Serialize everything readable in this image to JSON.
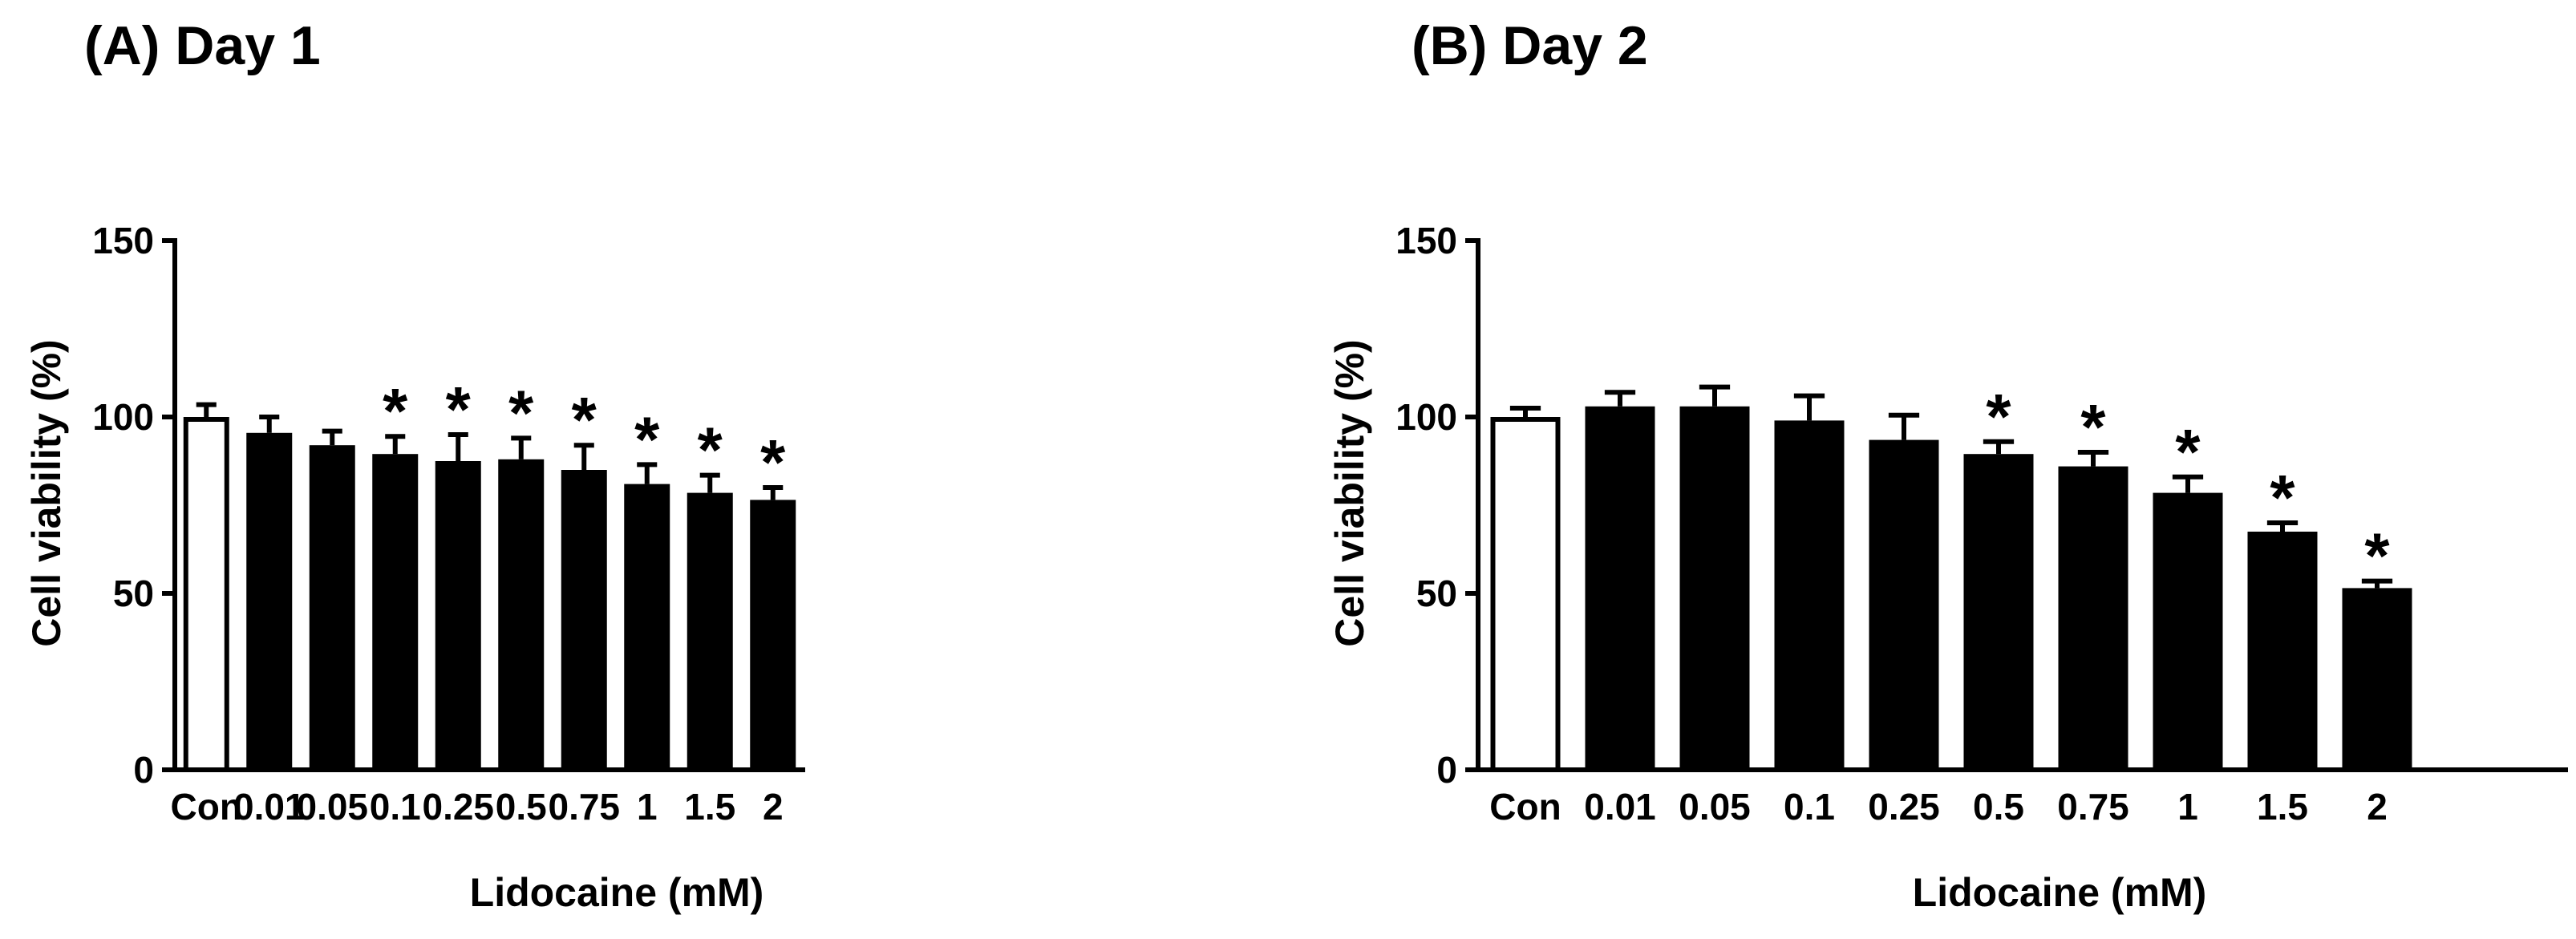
{
  "chart_data": [
    {
      "type": "bar",
      "title": "(A) Day 1",
      "xlabel": "Lidocaine (mM)",
      "ylabel": "Cell viability  (%)",
      "ylim": [
        0,
        150
      ],
      "yticks": [
        "0",
        "50",
        "100",
        "150"
      ],
      "categories": [
        "Con",
        "0.01",
        "0.05",
        "0.1",
        "0.25",
        "0.5",
        "0.75",
        "1",
        "1.5",
        "2"
      ],
      "series": [
        {
          "name": "Day 1",
          "values": [
            100,
            95.5,
            92,
            89.5,
            87.5,
            88,
            85,
            81,
            78.5,
            76.5
          ],
          "errors": [
            3.5,
            4.5,
            4,
            5,
            7.5,
            6,
            7,
            5.5,
            5,
            3.5
          ],
          "significant": [
            false,
            false,
            false,
            true,
            true,
            true,
            true,
            true,
            true,
            true
          ],
          "fills": [
            "#ffffff",
            "#000000",
            "#000000",
            "#000000",
            "#000000",
            "#000000",
            "#000000",
            "#000000",
            "#000000",
            "#000000"
          ]
        }
      ],
      "significance_marker": "*"
    },
    {
      "type": "bar",
      "title": "(B) Day 2",
      "xlabel": "Lidocaine (mM)",
      "ylabel": "Cell viability  (%)",
      "ylim": [
        0,
        150
      ],
      "yticks": [
        "0",
        "50",
        "100",
        "150"
      ],
      "categories": [
        "Con",
        "0.01",
        "0.05",
        "0.1",
        "0.25",
        "0.5",
        "0.75",
        "1",
        "1.5",
        "2"
      ],
      "series": [
        {
          "name": "Day 2",
          "values": [
            100,
            103,
            103,
            99,
            93.5,
            89.5,
            86,
            78.5,
            67.5,
            51.5
          ],
          "errors": [
            2.5,
            4,
            5.5,
            7,
            7,
            3.5,
            4,
            4.5,
            2.5,
            2
          ],
          "significant": [
            false,
            false,
            false,
            false,
            false,
            true,
            true,
            true,
            true,
            true
          ],
          "fills": [
            "#ffffff",
            "#000000",
            "#000000",
            "#000000",
            "#000000",
            "#000000",
            "#000000",
            "#000000",
            "#000000",
            "#000000"
          ]
        }
      ],
      "significance_marker": "*"
    }
  ]
}
